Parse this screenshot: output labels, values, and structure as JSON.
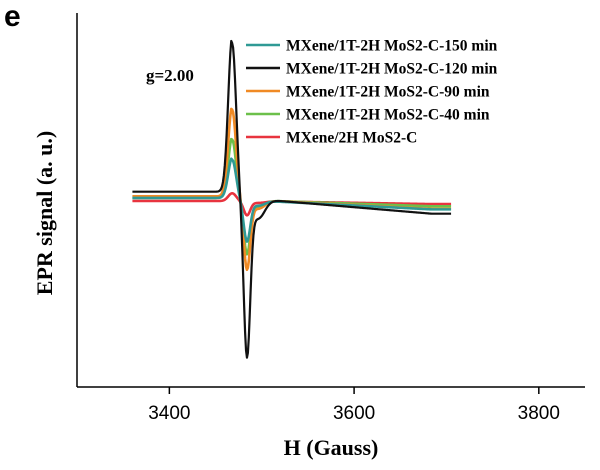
{
  "panel_label": "e",
  "chart_data": {
    "type": "line",
    "xlabel": "H (Gauss)",
    "ylabel": "EPR signal (a. u.)",
    "xlim": [
      3300,
      3850
    ],
    "x_ticks": [
      3400,
      3600,
      3800
    ],
    "y_ticks": [],
    "ylim": [
      -1.1,
      1.1
    ],
    "grid": false,
    "legend_position": "top-right",
    "annotation": "g=2.00",
    "line_shape": {
      "x_start": 3360,
      "x_end": 3705,
      "peak_x": 3468,
      "trough_x": 3484
    },
    "series": [
      {
        "name": "MXene/1T-2H MoS2-C-150 min",
        "color": "#2f9a95",
        "peak": 0.26,
        "trough": -0.26,
        "baseline": 0.02,
        "tail": -0.06
      },
      {
        "name": "MXene/1T-2H MoS2-C-120 min",
        "color": "#111111",
        "peak": 1.0,
        "trough": -1.0,
        "baseline": 0.06,
        "tail": -0.1
      },
      {
        "name": "MXene/1T-2H MoS2-C-90 min",
        "color": "#f08a24",
        "peak": 0.58,
        "trough": -0.44,
        "baseline": 0.03,
        "tail": -0.06
      },
      {
        "name": "MXene/1T-2H MoS2-C-40 min",
        "color": "#6cc04a",
        "peak": 0.39,
        "trough": -0.34,
        "baseline": 0.02,
        "tail": -0.04
      },
      {
        "name": "MXene/2H MoS2-C",
        "color": "#e8343f",
        "peak": 0.05,
        "trough": -0.09,
        "baseline": 0.0,
        "tail": -0.02
      }
    ]
  }
}
